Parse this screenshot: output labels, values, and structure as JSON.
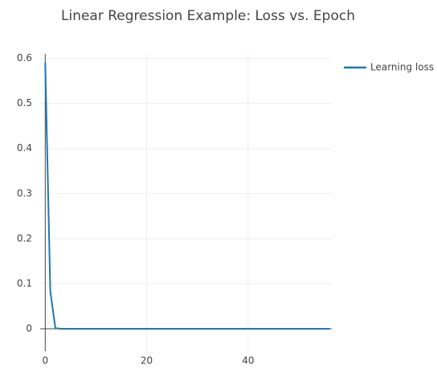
{
  "chart_data": {
    "type": "line",
    "title": "Linear Regression Example: Loss vs. Epoch",
    "xlabel": "",
    "ylabel": "",
    "xlim": [
      -1,
      56.5
    ],
    "ylim": [
      -0.05,
      0.61
    ],
    "x_ticks": [
      0,
      20,
      40
    ],
    "y_ticks": [
      0,
      0.1,
      0.2,
      0.3,
      0.4,
      0.5,
      0.6
    ],
    "x_tick_labels": [
      "0",
      "20",
      "40"
    ],
    "y_tick_labels": [
      "0",
      "0.1",
      "0.2",
      "0.3",
      "0.4",
      "0.5",
      "0.6"
    ],
    "grid": true,
    "legend_position": "top-right",
    "series": [
      {
        "name": "Learning loss",
        "color": "#1f77b4",
        "x": [
          0,
          1,
          2,
          3,
          4,
          5,
          6,
          7,
          8,
          9,
          10,
          11,
          12,
          13,
          14,
          15,
          16,
          17,
          18,
          19,
          20,
          21,
          22,
          23,
          24,
          25,
          26,
          27,
          28,
          29,
          30,
          31,
          32,
          33,
          34,
          35,
          36,
          37,
          38,
          39,
          40,
          41,
          42,
          43,
          44,
          45,
          46,
          47,
          48,
          49,
          50,
          51,
          52,
          53,
          54,
          55,
          56
        ],
        "y": [
          0.59,
          0.083,
          0.002,
          0,
          0,
          0,
          0,
          0,
          0,
          0,
          0,
          0,
          0,
          0,
          0,
          0,
          0,
          0,
          0,
          0,
          0,
          0,
          0,
          0,
          0,
          0,
          0,
          0,
          0,
          0,
          0,
          0,
          0,
          0,
          0,
          0,
          0,
          0,
          0,
          0,
          0,
          0,
          0,
          0,
          0,
          0,
          0,
          0,
          0,
          0,
          0,
          0,
          0,
          0,
          0,
          0,
          0
        ]
      }
    ]
  }
}
